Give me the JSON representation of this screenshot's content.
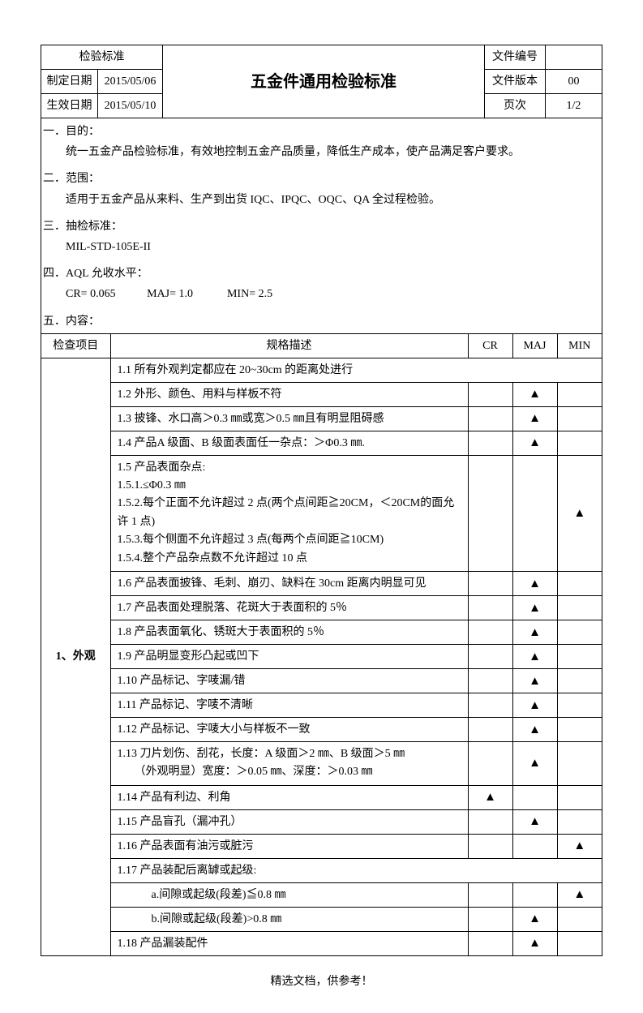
{
  "header": {
    "std_label": "检验标准",
    "date_made_label": "制定日期",
    "date_made": "2015/05/06",
    "date_eff_label": "生效日期",
    "date_eff": "2015/05/10",
    "title": "五金件通用检验标准",
    "doc_no_label": "文件编号",
    "doc_no": "",
    "doc_ver_label": "文件版本",
    "doc_ver": "00",
    "page_label": "页次",
    "page": "1/2"
  },
  "sections": {
    "s1_title": "一．目的：",
    "s1_body": "统一五金产品检验标准，有效地控制五金产品质量，降低生产成本，使产品满足客户要求。",
    "s2_title": "二．范围：",
    "s2_body": "适用于五金产品从来料、生产到出货 IQC、IPQC、OQC、QA 全过程检验。",
    "s3_title": "三．抽检标准：",
    "s3_body": "MIL-STD-105E-II",
    "s4_title": "四．AQL 允收水平：",
    "s4_body": "CR= 0.065           MAJ= 1.0            MIN= 2.5",
    "s5_title": "五．内容："
  },
  "table_head": {
    "c1": "检查项目",
    "c2": "规格描述",
    "c3": "CR",
    "c4": "MAJ",
    "c5": "MIN"
  },
  "category": "1、外观",
  "mark": "▲",
  "rows": [
    {
      "desc": "1.1 所有外观判定都应在 20~30cm 的距离处进行",
      "cr": "",
      "maj": "",
      "min": "",
      "merged": true
    },
    {
      "desc": "1.2 外形、颜色、用料与样板不符",
      "cr": "",
      "maj": "▲",
      "min": ""
    },
    {
      "desc": "1.3 披锋、水口高＞0.3 ㎜或宽＞0.5 ㎜且有明显阻碍感",
      "cr": "",
      "maj": "▲",
      "min": ""
    },
    {
      "desc": "1.4 产品A 级面、B 级面表面任一杂点：＞Φ0.3 ㎜.",
      "cr": "",
      "maj": "▲",
      "min": ""
    },
    {
      "desc": "1.5 产品表面杂点:\n1.5.1.≤Φ0.3 ㎜\n1.5.2.每个正面不允许超过 2 点(两个点间距≧20CM，＜20CM的面允许 1 点)\n1.5.3.每个侧面不允许超过 3 点(每两个点间距≧10CM)\n1.5.4.整个产品杂点数不允许超过 10 点",
      "cr": "",
      "maj": "",
      "min": "▲",
      "multi": true
    },
    {
      "desc": "1.6 产品表面披锋、毛刺、崩刃、缺料在 30cm 距离内明显可见",
      "cr": "",
      "maj": "▲",
      "min": ""
    },
    {
      "desc": "1.7 产品表面处理脱落、花斑大于表面积的 5％",
      "cr": "",
      "maj": "▲",
      "min": ""
    },
    {
      "desc": "1.8 产品表面氧化、锈斑大于表面积的 5％",
      "cr": "",
      "maj": "▲",
      "min": ""
    },
    {
      "desc": "1.9 产品明显变形凸起或凹下",
      "cr": "",
      "maj": "▲",
      "min": ""
    },
    {
      "desc": "1.10 产品标记、字唛漏/错",
      "cr": "",
      "maj": "▲",
      "min": ""
    },
    {
      "desc": "1.11 产品标记、字唛不清晰",
      "cr": "",
      "maj": "▲",
      "min": ""
    },
    {
      "desc": "1.12 产品标记、字唛大小与样板不一致",
      "cr": "",
      "maj": "▲",
      "min": ""
    },
    {
      "desc": "1.13 刀片划伤、刮花，长度：A 级面＞2 ㎜、B 级面＞5 ㎜\n　　（外观明显）宽度：＞0.05 ㎜、深度：＞0.03 ㎜",
      "cr": "",
      "maj": "▲",
      "min": "",
      "multi": true
    },
    {
      "desc": "1.14 产品有利边、利角",
      "cr": "▲",
      "maj": "",
      "min": ""
    },
    {
      "desc": "1.15 产品盲孔（漏冲孔）",
      "cr": "",
      "maj": "▲",
      "min": ""
    },
    {
      "desc": "1.16 产品表面有油污或脏污",
      "cr": "",
      "maj": "",
      "min": "▲"
    },
    {
      "desc": "1.17 产品装配后离罅或起级:",
      "cr": "",
      "maj": "",
      "min": "",
      "merged": true
    },
    {
      "desc": "　　　a.间隙或起级(段差)≦0.8 ㎜",
      "cr": "",
      "maj": "",
      "min": "▲"
    },
    {
      "desc": "　　　b.间隙或起级(段差)>0.8 ㎜",
      "cr": "",
      "maj": "▲",
      "min": ""
    },
    {
      "desc": "1.18 产品漏装配件",
      "cr": "",
      "maj": "▲",
      "min": ""
    }
  ],
  "footer": "精选文档，供参考！"
}
